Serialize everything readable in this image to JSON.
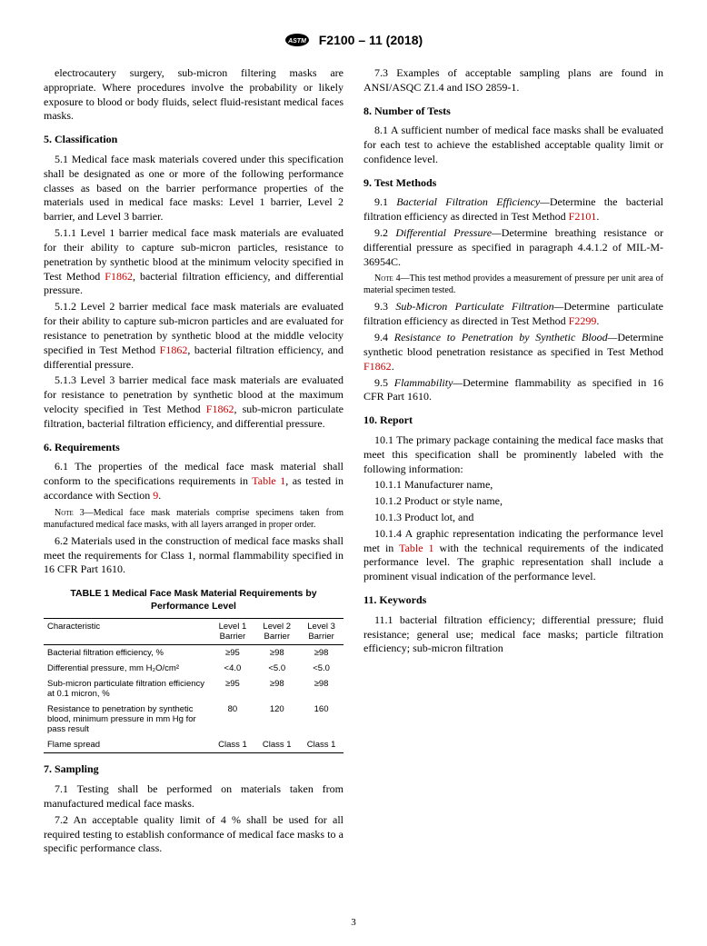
{
  "header": {
    "designation": "F2100 – 11 (2018)"
  },
  "intro": {
    "p1": "electrocautery surgery, sub-micron filtering masks are appropriate. Where procedures involve the probability or likely exposure to blood or body fluids, select fluid-resistant medical faces masks."
  },
  "sec5": {
    "heading": "5.  Classification",
    "p1": "5.1 Medical face mask materials covered under this specification shall be designated as one or more of the following performance classes as based on the barrier performance properties of the materials used in medical face masks: Level 1 barrier, Level 2 barrier, and Level 3 barrier.",
    "p2a": "5.1.1 Level 1 barrier medical face mask materials are evaluated for their ability to capture sub-micron particles, resistance to penetration by synthetic blood at the minimum velocity specified in Test Method ",
    "p2link": "F1862",
    "p2b": ", bacterial filtration efficiency, and differential pressure.",
    "p3a": "5.1.2 Level 2 barrier medical face mask materials are evaluated for their ability to capture sub-micron particles and are evaluated for resistance to penetration by synthetic blood at the middle velocity specified in Test Method ",
    "p3link": "F1862",
    "p3b": ", bacterial filtration efficiency, and differential pressure.",
    "p4a": "5.1.3 Level 3 barrier medical face mask materials are evaluated for resistance to penetration by synthetic blood at the maximum velocity specified in Test Method ",
    "p4link": "F1862",
    "p4b": ", sub-micron particulate filtration, bacterial filtration efficiency, and differential pressure."
  },
  "sec6": {
    "heading": "6.  Requirements",
    "p1a": "6.1 The properties of the medical face mask material shall conform to the specifications requirements in ",
    "p1link": "Table 1",
    "p1b": ", as tested in accordance with Section ",
    "p1link2": "9",
    "p1c": ".",
    "note3lead": "Note 3—",
    "note3": "Medical face mask materials comprise specimens taken from manufactured medical face masks, with all layers arranged in proper order.",
    "p2": "6.2 Materials used in the construction of medical face masks shall meet the requirements for Class 1, normal flammability specified in 16 CFR Part 1610."
  },
  "table1": {
    "title": "TABLE 1 Medical Face Mask Material Requirements by Performance Level",
    "columns": [
      "Characteristic",
      "Level 1 Barrier",
      "Level 2 Barrier",
      "Level 3 Barrier"
    ],
    "rows": [
      [
        "Bacterial filtration efficiency, %",
        "≥95",
        "≥98",
        "≥98"
      ],
      [
        "Differential pressure, mm H₂O/cm²",
        "<4.0",
        "<5.0",
        "<5.0"
      ],
      [
        "Sub-micron particulate filtration efficiency at 0.1 micron, %",
        "≥95",
        "≥98",
        "≥98"
      ],
      [
        "Resistance to penetration by synthetic blood, minimum pressure in mm Hg for pass result",
        "80",
        "120",
        "160"
      ],
      [
        "Flame spread",
        "Class 1",
        "Class 1",
        "Class 1"
      ]
    ]
  },
  "sec7": {
    "heading": "7.  Sampling",
    "p1": "7.1 Testing shall be performed on materials taken from manufactured medical face masks.",
    "p2": "7.2 An acceptable quality limit of 4 % shall be used for all required testing to establish conformance of medical face masks to a specific performance class.",
    "p3": "7.3 Examples of acceptable sampling plans are found in ANSI/ASQC Z1.4 and ISO 2859-1."
  },
  "sec8": {
    "heading": "8.  Number of Tests",
    "p1": "8.1 A sufficient number of medical face masks shall be evaluated for each test to achieve the established acceptable quality limit or confidence level."
  },
  "sec9": {
    "heading": "9.  Test Methods",
    "p1a": "9.1 ",
    "p1i": "Bacterial Filtration Efficiency—",
    "p1b": "Determine the bacterial filtration efficiency as directed in Test Method ",
    "p1link": "F2101",
    "p1c": ".",
    "p2a": "9.2 ",
    "p2i": "Differential Pressure—",
    "p2b": "Determine breathing resistance or differential pressure as specified in paragraph 4.4.1.2 of MIL-M-36954C.",
    "note4lead": "Note 4—",
    "note4": "This test method provides a measurement of pressure per unit area of material specimen tested.",
    "p3a": "9.3 ",
    "p3i": "Sub-Micron Particulate Filtration—",
    "p3b": "Determine particulate filtration efficiency as directed in Test Method ",
    "p3link": "F2299",
    "p3c": ".",
    "p4a": "9.4 ",
    "p4i": "Resistance to Penetration by Synthetic Blood—",
    "p4b": "Determine synthetic blood penetration resistance as specified in Test Method ",
    "p4link": "F1862",
    "p4c": ".",
    "p5a": "9.5 ",
    "p5i": "Flammability—",
    "p5b": "Determine flammability as specified in 16 CFR Part 1610."
  },
  "sec10": {
    "heading": "10.  Report",
    "p1": "10.1 The primary package containing the medical face masks that meet this specification shall be prominently labeled with the following information:",
    "p2": "10.1.1 Manufacturer name,",
    "p3": "10.1.2 Product or style name,",
    "p4": "10.1.3 Product lot, and",
    "p5a": "10.1.4 A graphic representation indicating the performance level met in ",
    "p5link": "Table 1",
    "p5b": " with the technical requirements of the indicated performance level. The graphic representation shall include a prominent visual indication of the performance level."
  },
  "sec11": {
    "heading": "11.  Keywords",
    "p1": "11.1 bacterial filtration efficiency; differential pressure; fluid resistance; general use; medical face masks; particle filtration efficiency; sub-micron filtration"
  },
  "pageNumber": "3"
}
